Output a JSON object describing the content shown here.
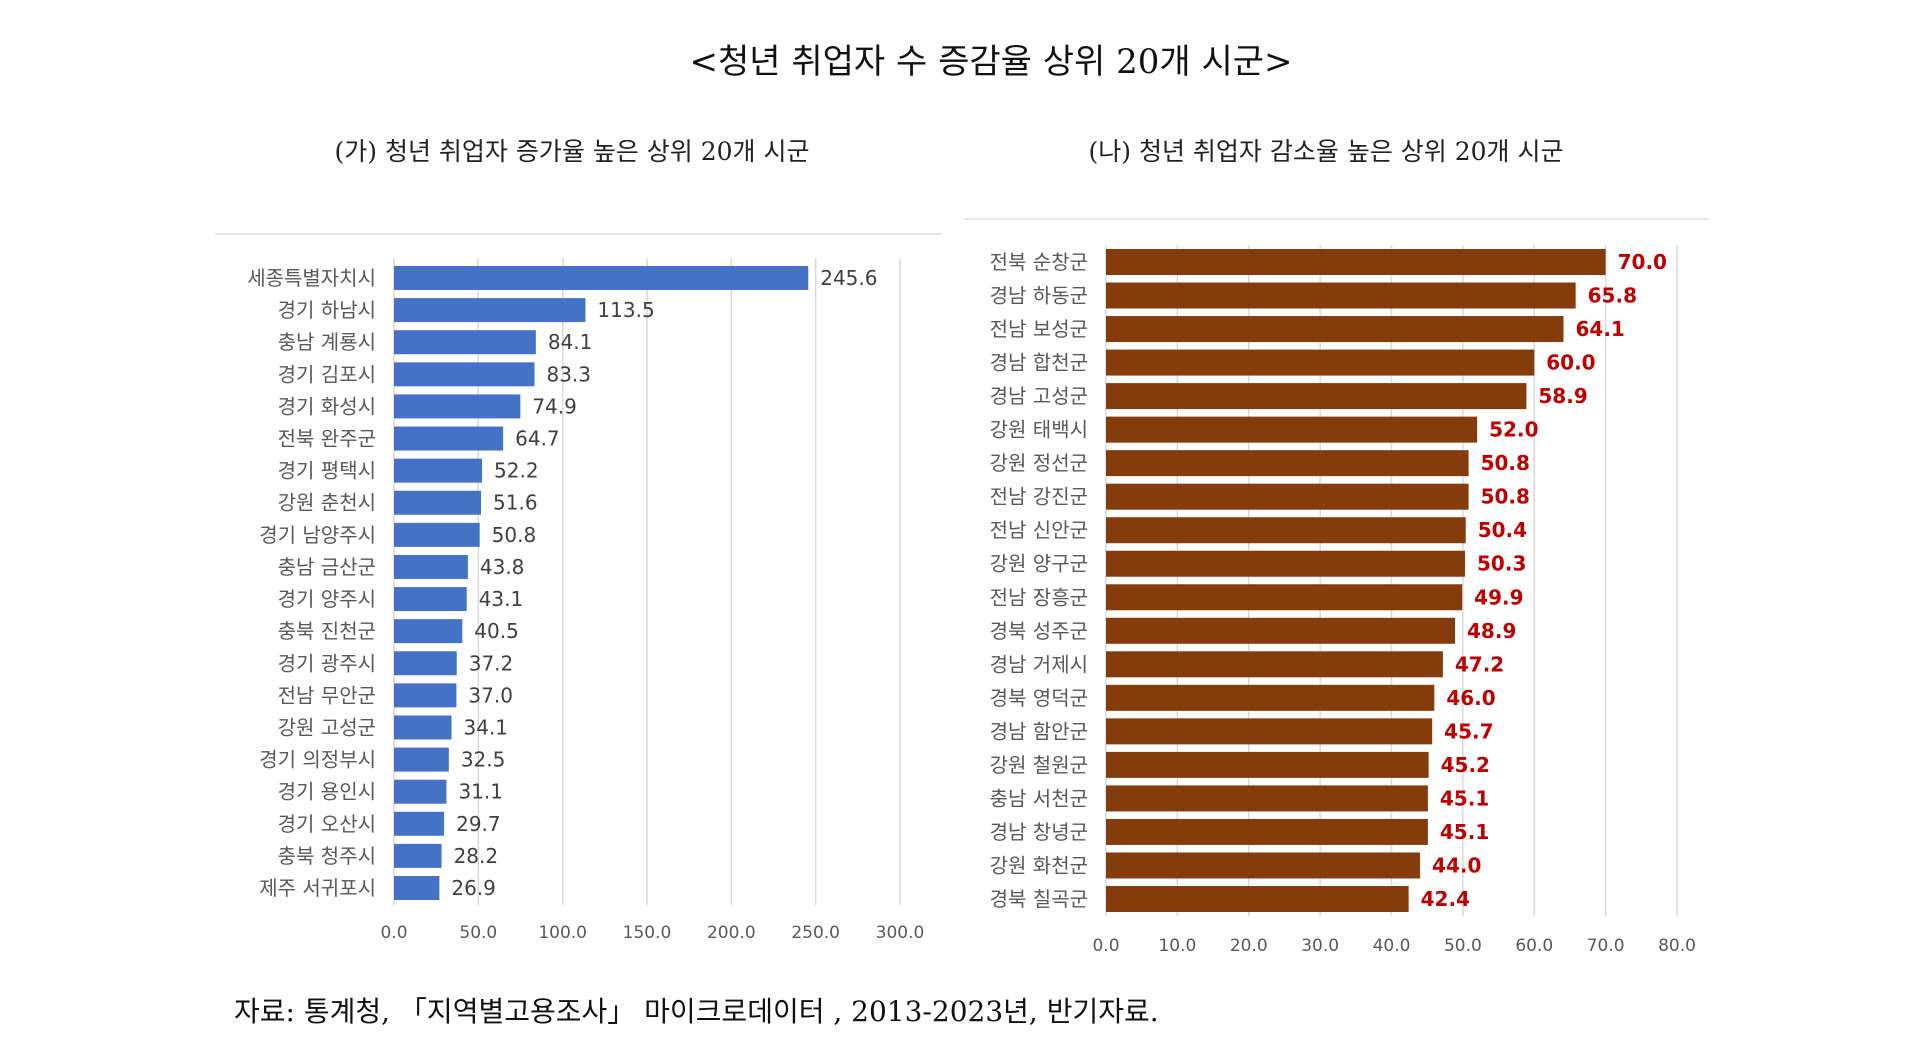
{
  "title": "<청년 취업자 수 증감율 상위 20개 시군>",
  "source": "자료: 통계청, 「지역별고용조사」 마이크로데이터 , 2013-2023년, 반기자료.",
  "colors": {
    "increase_bar": "#4472c4",
    "decrease_bar": "#843c0c",
    "increase_label": "#404040",
    "decrease_label": "#c00000",
    "axis_text": "#595959",
    "grid": "#d9d9d9"
  },
  "chart_data": [
    {
      "type": "bar",
      "orientation": "horizontal",
      "title": "(가) 청년 취업자 증가율 높은 상위 20개 시군",
      "categories": [
        "세종특별자치시",
        "경기 하남시",
        "충남 계룡시",
        "경기 김포시",
        "경기 화성시",
        "전북 완주군",
        "경기 평택시",
        "강원 춘천시",
        "경기 남양주시",
        "충남 금산군",
        "경기 양주시",
        "충북 진천군",
        "경기 광주시",
        "전남 무안군",
        "강원 고성군",
        "경기 의정부시",
        "경기 용인시",
        "경기 오산시",
        "충북 청주시",
        "제주 서귀포시"
      ],
      "values": [
        245.6,
        113.5,
        84.1,
        83.3,
        74.9,
        64.7,
        52.2,
        51.6,
        50.8,
        43.8,
        43.1,
        40.5,
        37.2,
        37.0,
        34.1,
        32.5,
        31.1,
        29.7,
        28.2,
        26.9
      ],
      "xlim": [
        0,
        300
      ],
      "ticks": [
        "0.0",
        "50.0",
        "100.0",
        "150.0",
        "200.0",
        "250.0",
        "300.0"
      ],
      "grid": true,
      "data_labels": true
    },
    {
      "type": "bar",
      "orientation": "horizontal",
      "title": "(나)  청년 취업자 감소율 높은 상위 20개 시군",
      "categories": [
        "전북 순창군",
        "경남 하동군",
        "전남 보성군",
        "경남 합천군",
        "경남 고성군",
        "강원 태백시",
        "강원 정선군",
        "전남 강진군",
        "전남 신안군",
        "강원 양구군",
        "전남 장흥군",
        "경북 성주군",
        "경남 거제시",
        "경북 영덕군",
        "경남 함안군",
        "강원 철원군",
        "충남 서천군",
        "경남 창녕군",
        "강원 화천군",
        "경북 칠곡군"
      ],
      "values": [
        70.0,
        65.8,
        64.1,
        60.0,
        58.9,
        52.0,
        50.8,
        50.8,
        50.4,
        50.3,
        49.9,
        48.9,
        47.2,
        46.0,
        45.7,
        45.2,
        45.1,
        45.1,
        44.0,
        42.4
      ],
      "xlim": [
        0,
        80
      ],
      "ticks": [
        "0.0",
        "10.0",
        "20.0",
        "30.0",
        "40.0",
        "50.0",
        "60.0",
        "70.0",
        "80.0"
      ],
      "grid": true,
      "data_labels": true
    }
  ]
}
